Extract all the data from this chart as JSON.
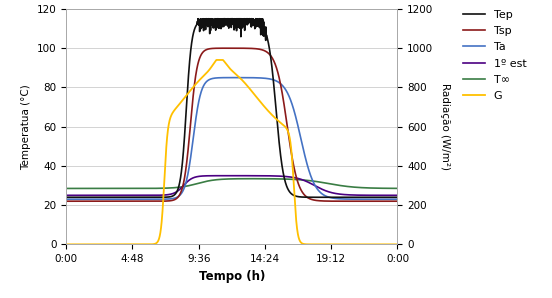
{
  "title": "",
  "xlabel": "Tempo (h)",
  "ylabel_left": "Temperatua (°C)",
  "ylabel_right": "Radiação (W/m²)",
  "ylim_left": [
    0,
    120
  ],
  "ylim_right": [
    0,
    1200
  ],
  "yticks_left": [
    0,
    20,
    40,
    60,
    80,
    100,
    120
  ],
  "yticks_right": [
    0,
    200,
    400,
    600,
    800,
    1000,
    1200
  ],
  "xticks_hours": [
    0,
    4.8,
    9.6,
    14.4,
    19.2,
    24.0
  ],
  "xtick_labels": [
    "0:00",
    "4:48",
    "9:36",
    "14:24",
    "19:12",
    "0:00"
  ],
  "colors": {
    "Tep": "#111111",
    "Tsp": "#8b1a1a",
    "Ta": "#4472c4",
    "est": "#4b0082",
    "Tinf": "#3a7d44",
    "G": "#ffc000"
  },
  "legend_labels": [
    "Tep",
    "Tsp",
    "Ta",
    "1º est",
    "T∞",
    "G"
  ],
  "background": "#ffffff",
  "plot_bg": "#f2f2f2"
}
